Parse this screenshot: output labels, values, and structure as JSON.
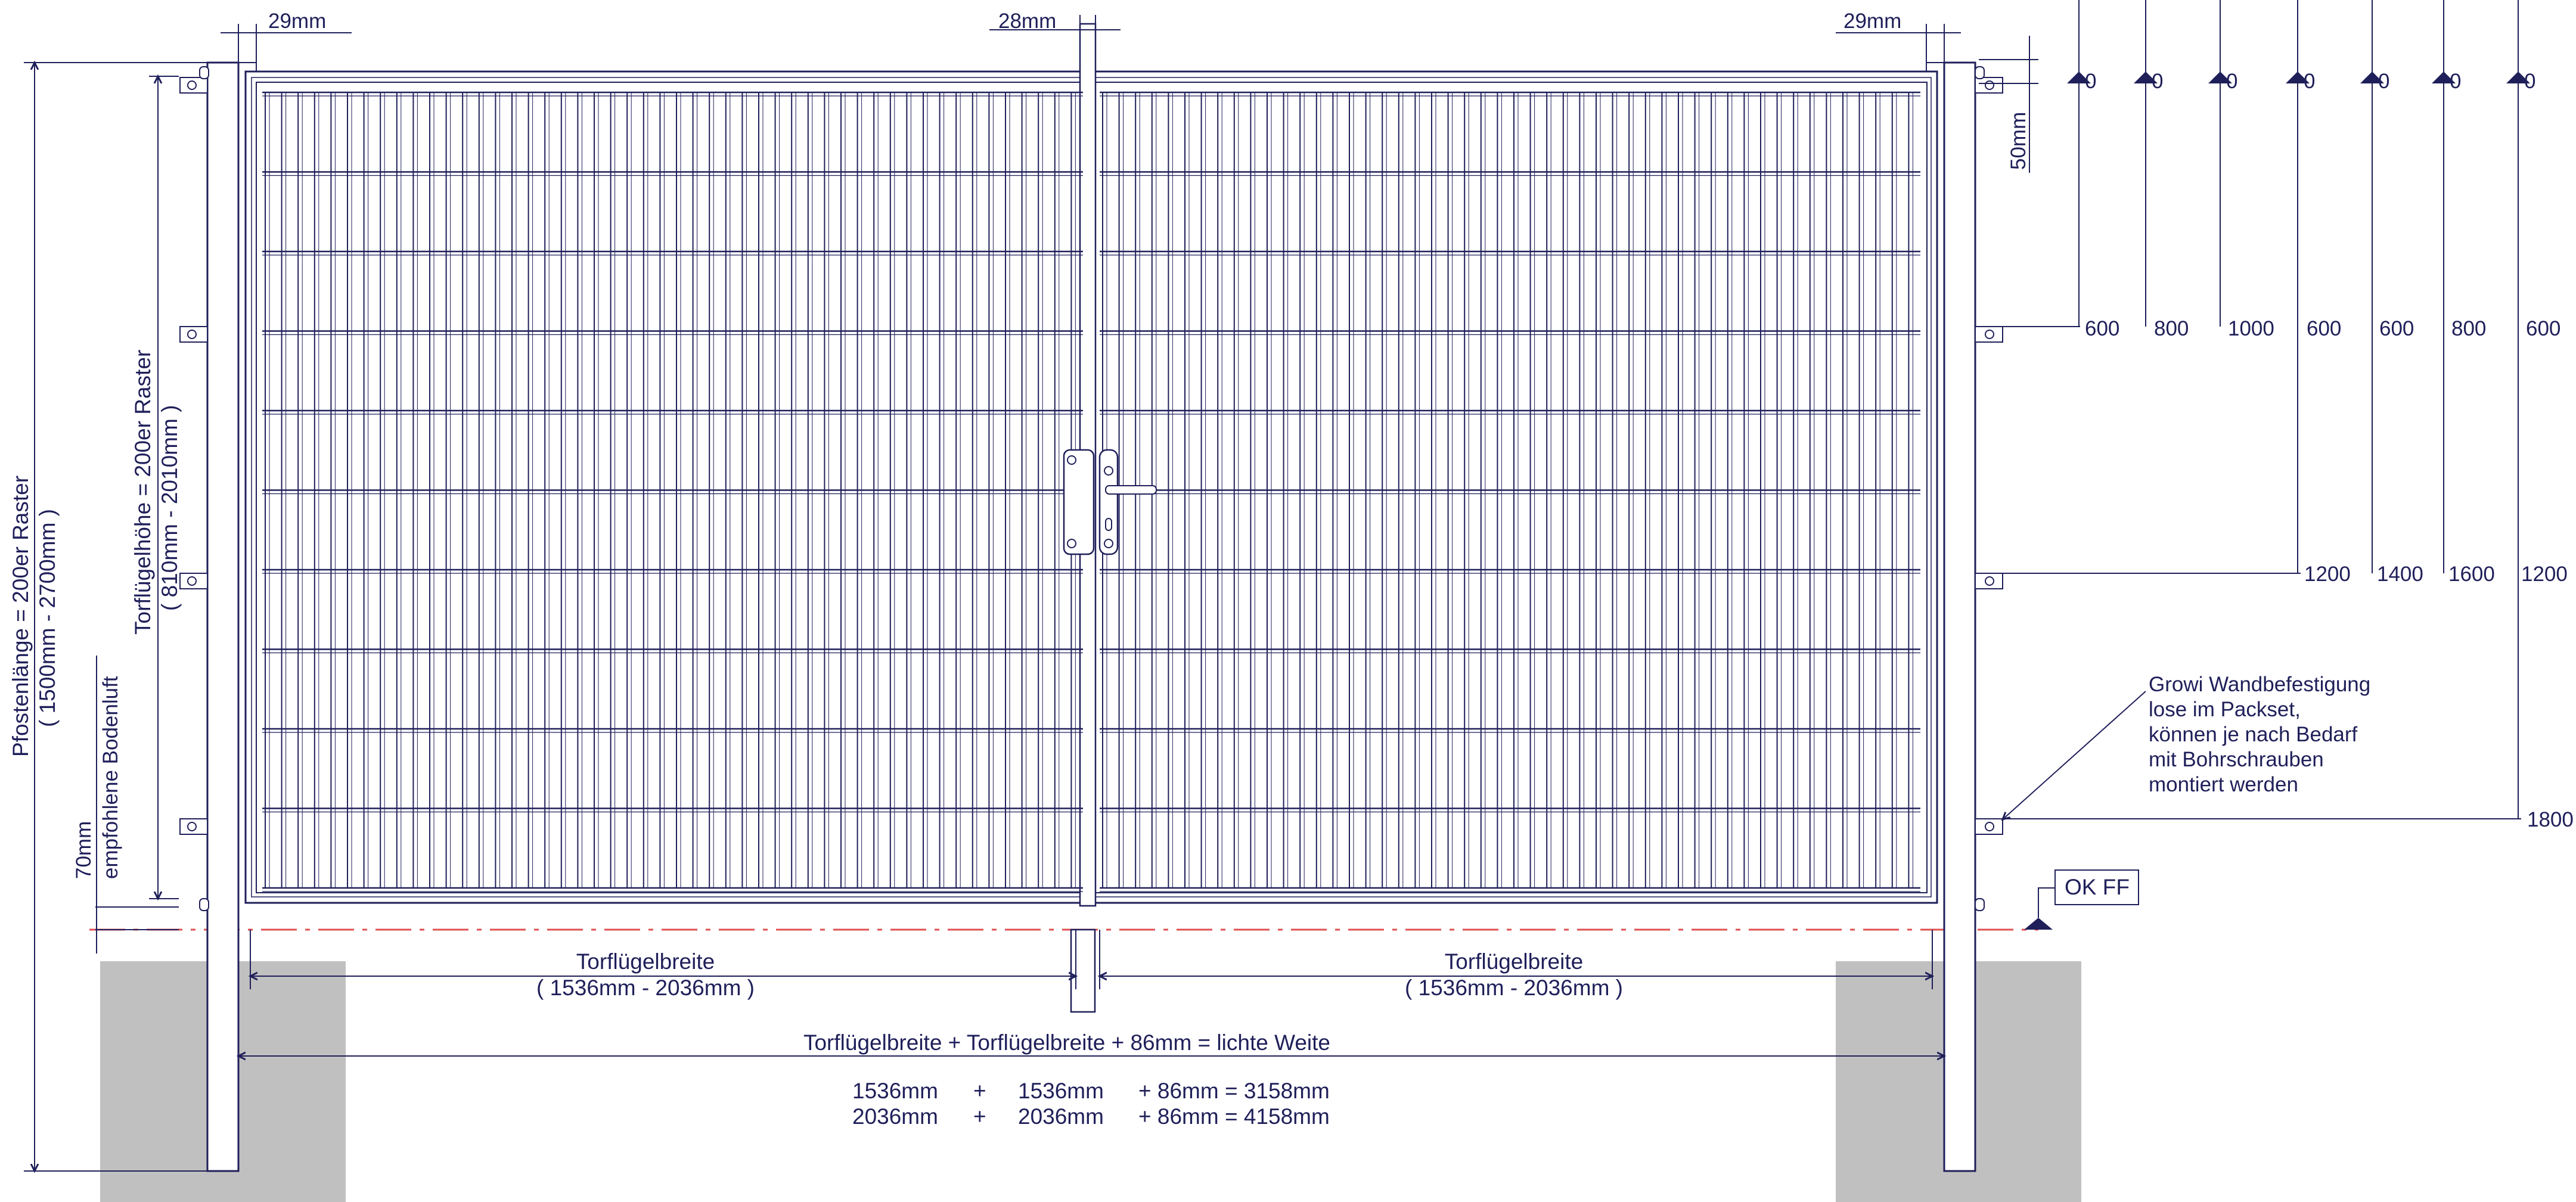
{
  "dimensions": {
    "post_width_left": "29mm",
    "center_gap": "28mm",
    "post_width_right": "29mm",
    "rail_offset": "50mm",
    "ground_clearance": "70mm",
    "ground_clearance_note": "empfohlene Bodenluft",
    "post_length_line1": "Pfostenlänge = 200er Raster",
    "post_length_line2": "( 1500mm - 2700mm )",
    "leaf_height_line1": "Torflügelhöhe = 200er Raster",
    "leaf_height_line2": "( 810mm - 2010mm )",
    "leaf_width_label": "Torflügelbreite",
    "leaf_width_range": "( 1536mm - 2036mm )",
    "formula_title": "Torflügelbreite + Torflügelbreite + 86mm = lichte Weite",
    "formula_rows": [
      {
        "a": "1536mm",
        "plus1": "+",
        "b": "1536mm",
        "c": "+ 86mm = 3158mm"
      },
      {
        "a": "2036mm",
        "plus1": "+",
        "b": "2036mm",
        "c": "+ 86mm = 4158mm"
      }
    ]
  },
  "floor_label": "OK FF",
  "wall_mount_note": [
    "Growi Wandbefestigung",
    "lose im Packset,",
    "können je nach Bedarf",
    "mit Bohrschrauben",
    "montiert werden"
  ],
  "mount_table": {
    "zeros": [
      "0",
      "0",
      "0",
      "0",
      "0",
      "0",
      "0"
    ],
    "row1": [
      "600",
      "800",
      "1000",
      "600",
      "600",
      "800",
      "600"
    ],
    "row2": [
      "1200",
      "1400",
      "1600",
      "1200"
    ],
    "row3": [
      "1800"
    ]
  },
  "colors": {
    "line": "#1f1f5a",
    "ground": "#c0c0c0",
    "floor_line": "#e05050"
  }
}
